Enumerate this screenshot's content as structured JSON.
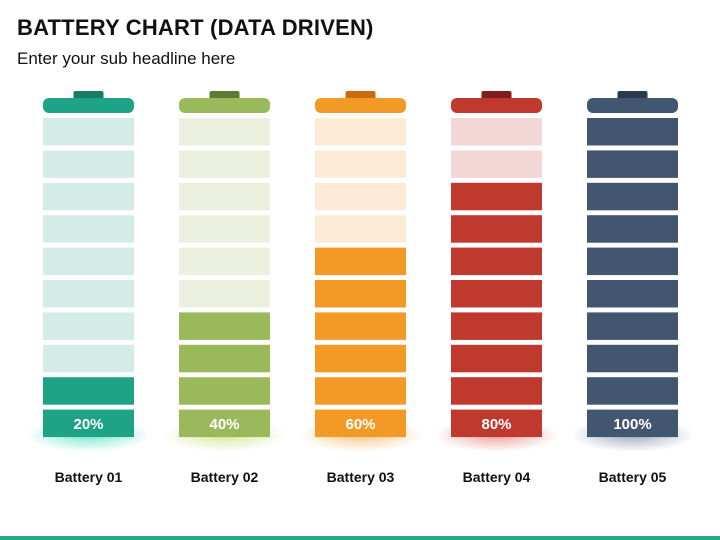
{
  "header": {
    "title": "BATTERY CHART (DATA DRIVEN)",
    "subtitle": "Enter your sub headline here"
  },
  "colors": {
    "accent_footer": "#2aa889"
  },
  "chart_data": {
    "type": "bar",
    "title": "BATTERY CHART (DATA DRIVEN)",
    "subtitle": "Enter your sub headline here",
    "ylim": [
      0,
      100
    ],
    "segments_per_battery": 10,
    "categories": [
      "Battery 01",
      "Battery 02",
      "Battery 03",
      "Battery 04",
      "Battery 05"
    ],
    "values": [
      20,
      40,
      60,
      80,
      100
    ],
    "value_labels": [
      "20%",
      "40%",
      "60%",
      "80%",
      "100%"
    ],
    "colors": [
      {
        "fill": "#1fa386",
        "empty": "#d4ece8",
        "cap": "#157c66",
        "glow": "#4fe0bf"
      },
      {
        "fill": "#9ab95b",
        "empty": "#ebf0df",
        "cap": "#5d7a32",
        "glow": "#c8e07e"
      },
      {
        "fill": "#f39a26",
        "empty": "#fdebd6",
        "cap": "#c86c10",
        "glow": "#f7b765"
      },
      {
        "fill": "#c0392f",
        "empty": "#f3d7d6",
        "cap": "#7f1e1a",
        "glow": "#e7837c"
      },
      {
        "fill": "#435671",
        "empty": "#dde3ea",
        "cap": "#2b3a4f",
        "glow": "#8293ad"
      }
    ]
  }
}
